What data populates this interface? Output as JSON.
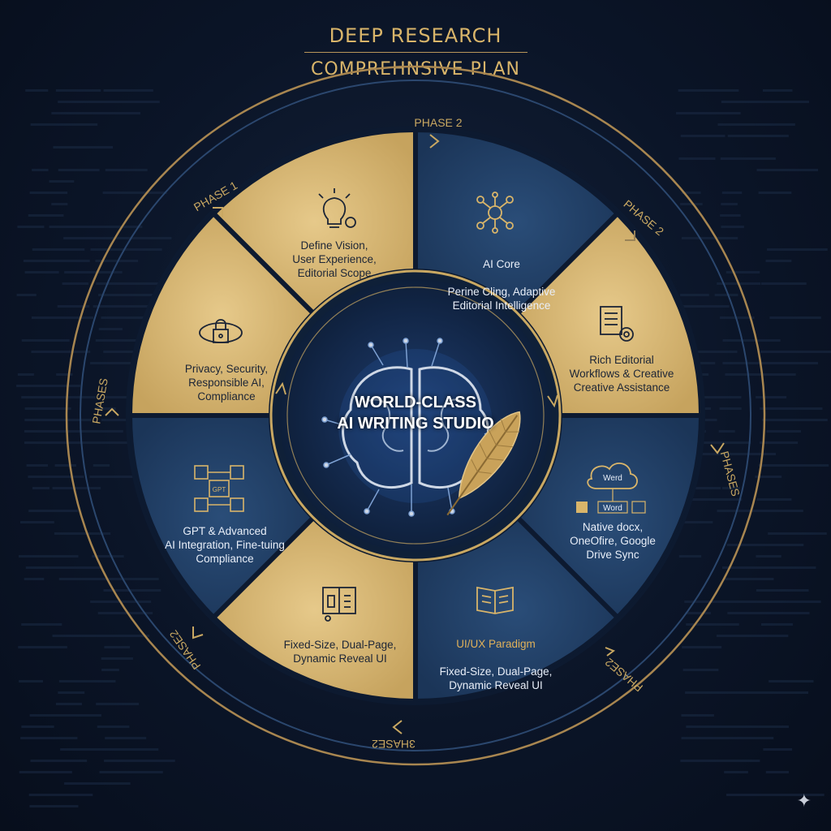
{
  "header": {
    "title_line1": "DEEP RESEARCH",
    "title_line2": "COMPREHNSIVE PLAN"
  },
  "center": {
    "title_line1": "WORLD-CLASS",
    "title_line2": "AI WRITING STUDIO",
    "icons": [
      "brain-circuit-icon",
      "quill-feather-icon"
    ]
  },
  "segments": [
    {
      "id": "vision",
      "label": "Define Vision,\nUser Experience,\nEditorial Scope",
      "icon": "lightbulb-gear-icon",
      "fill": "gold"
    },
    {
      "id": "ai-core",
      "title": "AI Core",
      "label": "Perine Cling, Adaptive\nEditorial Intelligence",
      "icon": "network-hub-icon",
      "fill": "navy"
    },
    {
      "id": "workflows",
      "label": "Rich Editorial\nWorkflows & Creative\nCreative Assistance",
      "icon": "document-gear-icon",
      "fill": "gold"
    },
    {
      "id": "sync",
      "cloud_label": "Werd",
      "tag_label": "Word",
      "label": "Native docx,\nOneOfire, Google\nDrive Sync",
      "icon": "cloud-sync-icon",
      "fill": "navy"
    },
    {
      "id": "uiux",
      "title": "UI/UX Paradigm",
      "label": "Fixed-Size, Dual-Page,\nDynamic Reveal UI",
      "icon": "open-book-icon",
      "fill": "navy"
    },
    {
      "id": "fixed",
      "label": "Fixed-Size, Dual-Page,\nDynamic Reveal UI",
      "icon": "book-bookmark-icon",
      "fill": "gold"
    },
    {
      "id": "gpt",
      "box_label": "GPT",
      "label": "GPT & Advanced\nAI Integration, Fine-tuing\nCompliance",
      "icon": "cube-network-icon",
      "fill": "navy"
    },
    {
      "id": "privacy",
      "label": "Privacy, Security,\nResponsible AI,\nCompliance",
      "icon": "lock-shield-icon",
      "fill": "gold"
    }
  ],
  "ring_labels": [
    "PHASE 2",
    "PHASE 2",
    "PHASES",
    "PHASE2",
    "3HASE2",
    "PHASE2",
    "PHASES",
    "PHASE 1"
  ],
  "colors": {
    "gold": "#cfae6a",
    "gold_dark": "#b8955a",
    "navy": "#1e3a5f",
    "navy_light": "#274b75",
    "background": "#0b1528",
    "accent_text": "#d9b56a",
    "center_glow": "#3e7ad6"
  },
  "decoration": {
    "sparkle_icon": "sparkle-icon"
  }
}
